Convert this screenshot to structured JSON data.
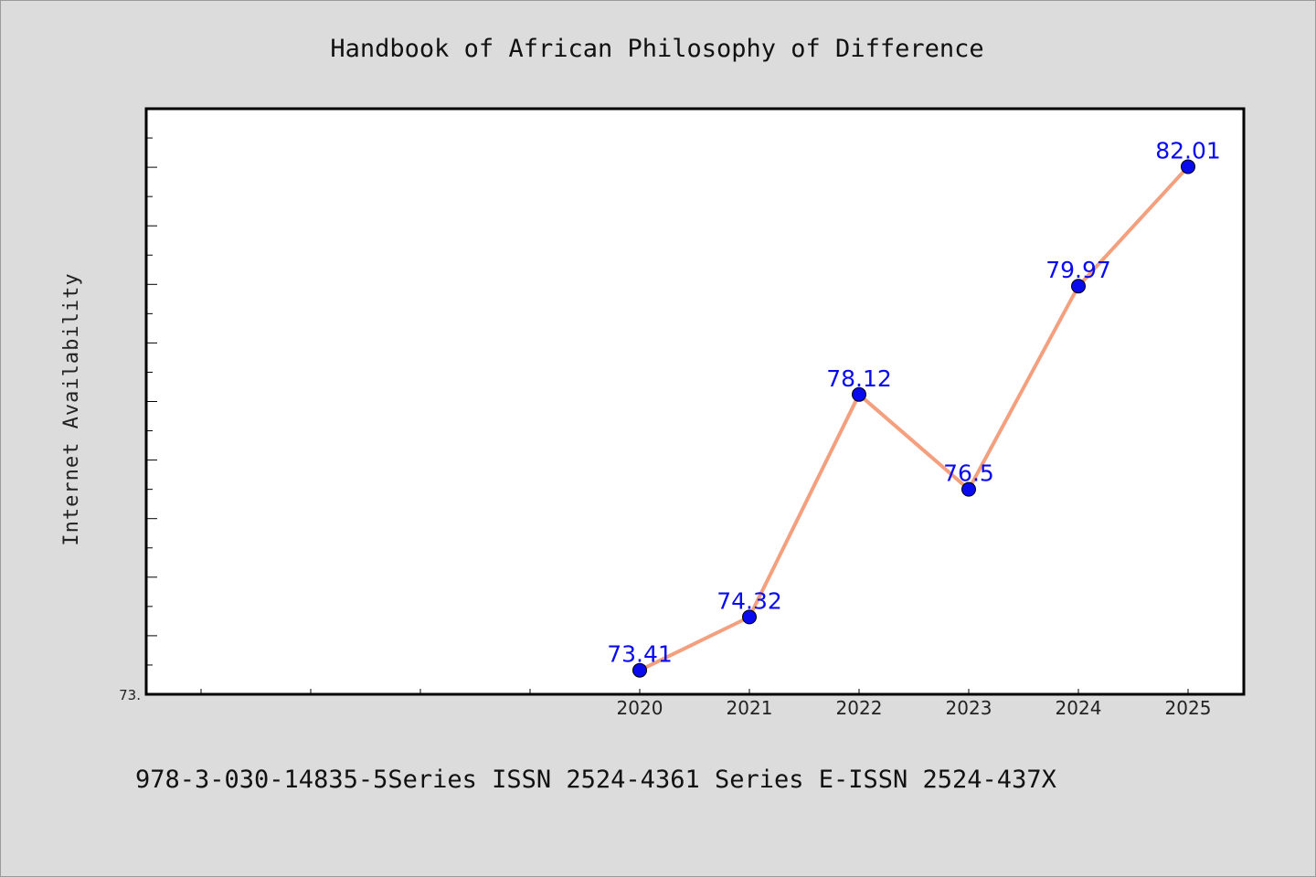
{
  "chart_data": {
    "type": "line",
    "title": "Handbook of African Philosophy of Difference",
    "xlabel": "",
    "ylabel": "Internet Availability",
    "categories": [
      "2020",
      "2021",
      "2022",
      "2023",
      "2024",
      "2025"
    ],
    "series": [
      {
        "values": [
          73.41,
          74.32,
          78.12,
          76.5,
          79.97,
          82.01
        ]
      }
    ],
    "data_labels": [
      "73.41",
      "74.32",
      "78.12",
      "76.5",
      "79.97",
      "82.01"
    ],
    "y_tick_labels": [
      "73."
    ],
    "ylim": [
      73.0,
      83.0
    ],
    "grid": false,
    "legend": "none",
    "line_color": "#f4a07e",
    "marker_color": "#0a0aee",
    "label_color": "#0a0aee"
  },
  "footer_text": "978-3-030-14835-5Series ISSN 2524-4361 Series E-ISSN 2524-437X"
}
